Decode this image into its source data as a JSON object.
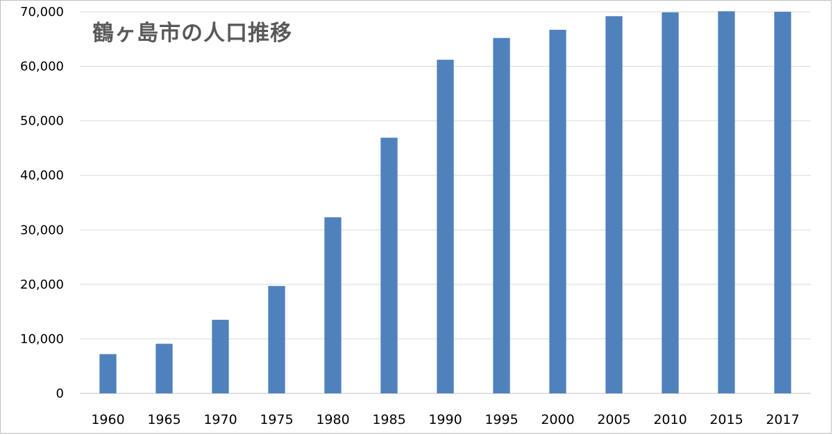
{
  "chart_data": {
    "type": "bar",
    "title": "鶴ヶ島市の人口推移",
    "xlabel": "",
    "ylabel": "",
    "categories": [
      "1960",
      "1965",
      "1970",
      "1975",
      "1980",
      "1985",
      "1990",
      "1995",
      "2000",
      "2005",
      "2010",
      "2015",
      "2017"
    ],
    "values": [
      7200,
      9100,
      13500,
      19700,
      32300,
      46900,
      61200,
      65200,
      66700,
      69200,
      69900,
      70100,
      70000
    ],
    "ylim": [
      0,
      70000
    ],
    "yticks": [
      "0",
      "10,000",
      "20,000",
      "30,000",
      "40,000",
      "50,000",
      "60,000",
      "70,000"
    ],
    "grid": true,
    "bar_color": "#4f81bd",
    "gridline_color": "#d9d9d9"
  }
}
